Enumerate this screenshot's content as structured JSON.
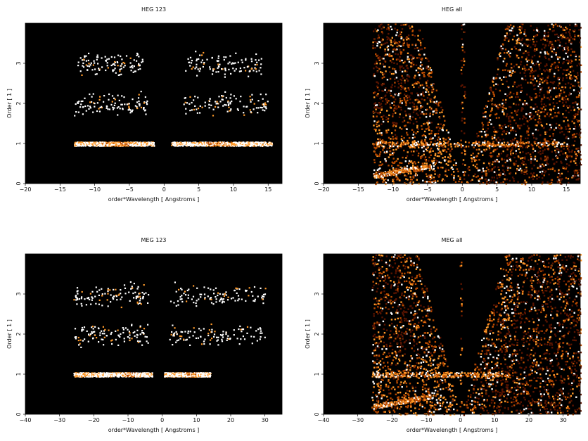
{
  "chart_data": [
    {
      "type": "heatmap",
      "title": "HEG 123",
      "xlabel": "order*Wavelength [ Angstroms ]",
      "ylabel": "Order [ 1 ]",
      "xlim": [
        -20,
        17
      ],
      "ylim": [
        0,
        4
      ],
      "xticks": [
        -20,
        -15,
        -10,
        -5,
        0,
        5,
        10,
        15
      ],
      "yticks": [
        0,
        1,
        2,
        3
      ],
      "colormap": [
        "#000000",
        "#5a1400",
        "#b84a00",
        "#ff9a2a",
        "#ffffff"
      ],
      "bands": [
        {
          "order": 1,
          "x_ranges": [
            [
              -13,
              -1.5
            ],
            [
              1,
              15.5
            ]
          ],
          "density": "high",
          "peak": [
            -7,
            8
          ]
        },
        {
          "order": 2,
          "x_ranges": [
            [
              -13,
              -2.5
            ],
            [
              2.5,
              16
            ]
          ],
          "density": "sparse"
        },
        {
          "order": 3,
          "x_ranges": [
            [
              -12.5,
              -3
            ],
            [
              3,
              14
            ]
          ],
          "density": "sparse"
        }
      ]
    },
    {
      "type": "heatmap",
      "title": "HEG all",
      "xlabel": "order*Wavelength [ Angstroms ]",
      "ylabel": "Order [ 1 ]",
      "xlim": [
        -20,
        17
      ],
      "ylim": [
        0,
        4
      ],
      "xticks": [
        -20,
        -15,
        -10,
        -5,
        0,
        5,
        10,
        15
      ],
      "yticks": [
        0,
        1,
        2,
        3
      ],
      "colormap": [
        "#000000",
        "#5a1400",
        "#b84a00",
        "#ff9a2a",
        "#ffffff"
      ],
      "data_extent_x": [
        -13,
        17
      ],
      "wedge_apex_x": 0,
      "bands": [
        {
          "order": 1,
          "x_ranges": [
            [
              -13,
              15
            ]
          ],
          "density": "high"
        }
      ]
    },
    {
      "type": "heatmap",
      "title": "MEG 123",
      "xlabel": "order*Wavelength [ Angstroms ]",
      "ylabel": "Order [ 1 ]",
      "xlim": [
        -40,
        35
      ],
      "ylim": [
        0,
        4
      ],
      "xticks": [
        -40,
        -30,
        -20,
        -10,
        0,
        10,
        20,
        30
      ],
      "yticks": [
        0,
        1,
        2,
        3
      ],
      "colormap": [
        "#000000",
        "#5a1400",
        "#b84a00",
        "#ff9a2a",
        "#ffffff"
      ],
      "bands": [
        {
          "order": 1,
          "x_ranges": [
            [
              -26,
              -3
            ],
            [
              0.5,
              14
            ]
          ],
          "density": "high",
          "peak": [
            -10,
            8
          ]
        },
        {
          "order": 2,
          "x_ranges": [
            [
              -26,
              -4
            ],
            [
              2,
              30
            ]
          ],
          "density": "sparse"
        },
        {
          "order": 3,
          "x_ranges": [
            [
              -26,
              -4
            ],
            [
              2,
              30
            ]
          ],
          "density": "sparse"
        }
      ]
    },
    {
      "type": "heatmap",
      "title": "MEG all",
      "xlabel": "order*Wavelength [ Angstroms ]",
      "ylabel": "Order [ 1 ]",
      "xlim": [
        -40,
        35
      ],
      "ylim": [
        0,
        4
      ],
      "xticks": [
        -40,
        -30,
        -20,
        -10,
        0,
        10,
        20,
        30
      ],
      "yticks": [
        0,
        1,
        2,
        3
      ],
      "colormap": [
        "#000000",
        "#5a1400",
        "#b84a00",
        "#ff9a2a",
        "#ffffff"
      ],
      "data_extent_x": [
        -26,
        35
      ],
      "wedge_apex_x": 0,
      "bands": [
        {
          "order": 1,
          "x_ranges": [
            [
              -26,
              14
            ]
          ],
          "density": "high"
        }
      ]
    }
  ]
}
